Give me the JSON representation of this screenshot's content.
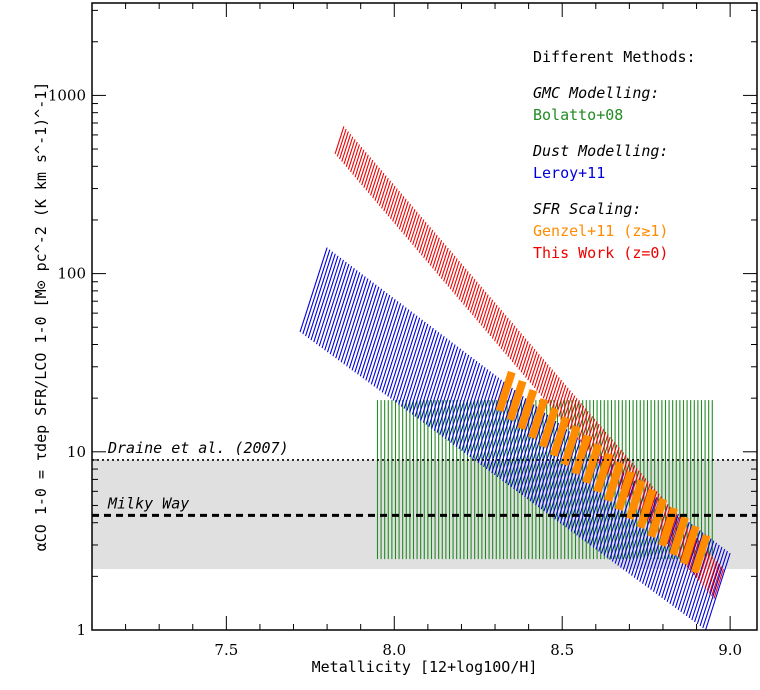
{
  "chart_data": {
    "type": "area",
    "xlabel": "Metallicity [12+log10O/H]",
    "ylabel": "αCO 1-0 = τdep SFR/LCO 1-0 [M⊙ pc^-2 (K km s^-1)^-1]",
    "xlim": [
      7.1,
      9.08
    ],
    "ylim": [
      1,
      3300
    ],
    "yscale": "log",
    "x_ticks": [
      "7.5",
      "8.0",
      "8.5",
      "9.0"
    ],
    "y_ticks": [
      "1",
      "10",
      "100",
      "1000"
    ],
    "reference_lines": [
      {
        "name": "Draine et al. (2007)",
        "y": 9.0,
        "style": "dotted",
        "color": "#000000"
      },
      {
        "name": "Milky Way",
        "y": 4.4,
        "style": "dashed",
        "color": "#000000"
      }
    ],
    "milky_way_range": [
      2.2,
      9.0
    ],
    "series": [
      {
        "name": "Bolatto+08",
        "color": "#228b22",
        "x_range": [
          7.95,
          8.95
        ],
        "y_range": [
          2.5,
          19.5
        ]
      },
      {
        "name": "Leroy+11",
        "color": "#0000dd",
        "x_range": [
          7.8,
          9.0
        ],
        "y_at_x_min": [
          47,
          140
        ],
        "y_at_x_max": [
          1.0,
          2.7
        ]
      },
      {
        "name": "This Work (z=0)",
        "color": "#ee0000",
        "x_range": [
          7.85,
          8.98
        ],
        "y_at_x_min": [
          470,
          670
        ],
        "y_at_x_max": [
          1.5,
          2.2
        ]
      },
      {
        "name": "Genzel+11 (z≳1)",
        "color": "#ff8c00",
        "x_range": [
          8.35,
          8.93
        ],
        "y_at_x_min": [
          17,
          28
        ],
        "y_at_x_max": [
          2.1,
          3.4
        ]
      }
    ]
  },
  "legend": {
    "title": "Different Methods:",
    "groups": [
      {
        "heading": "GMC Modelling:",
        "entries": [
          "Bolatto+08"
        ]
      },
      {
        "heading": "Dust Modelling:",
        "entries": [
          "Leroy+11"
        ]
      },
      {
        "heading": "SFR Scaling:",
        "entries": [
          "Genzel+11 (z≳1)",
          "This Work (z=0)"
        ]
      }
    ]
  }
}
